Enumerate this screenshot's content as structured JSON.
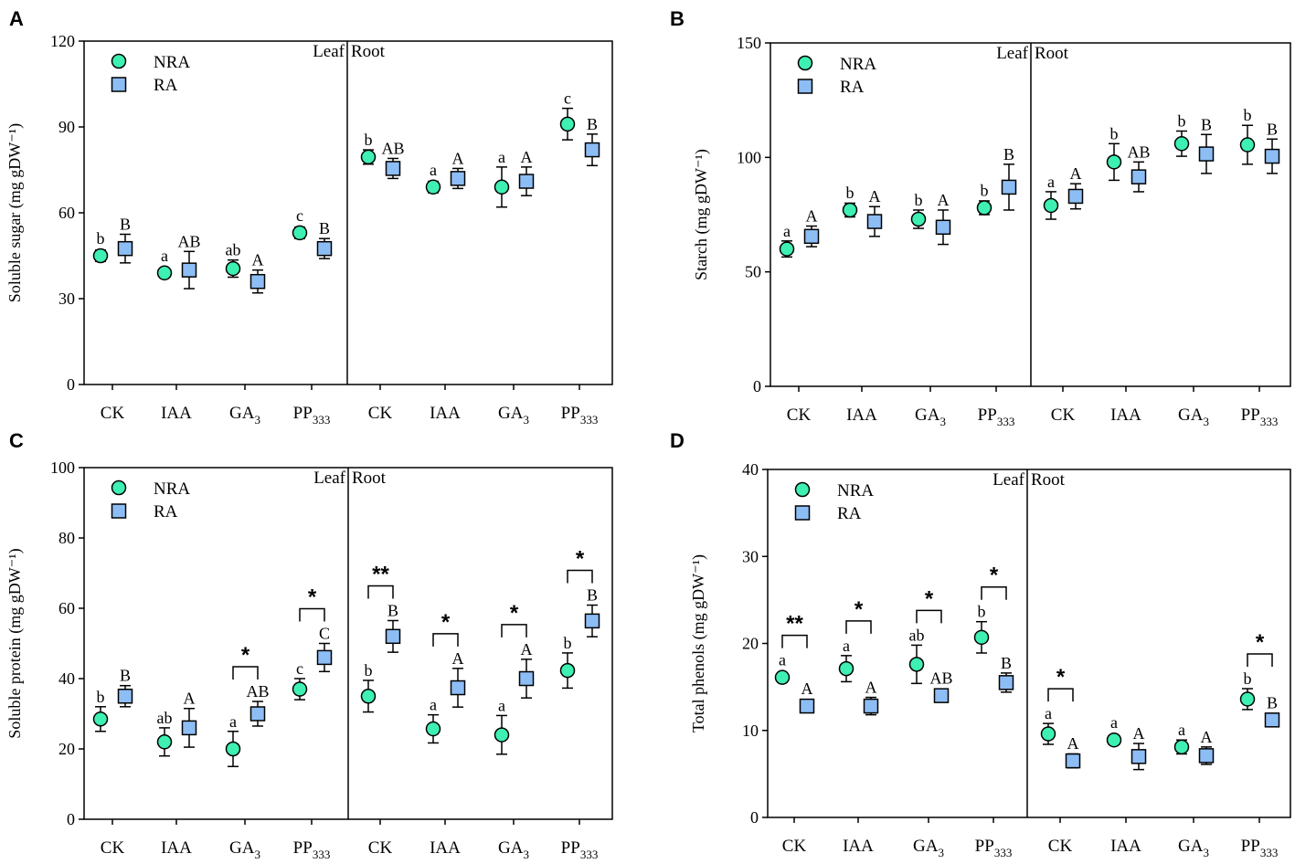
{
  "colors": {
    "nra": "#3ef0b2",
    "ra": "#8dbdf5",
    "axis": "#000000"
  },
  "chart_data": [
    {
      "panel": "A",
      "type": "scatter",
      "ylabel": "Soluble sugar (mg gDW⁻¹)",
      "ylim": [
        0,
        120
      ],
      "yticks": [
        0,
        30,
        60,
        90,
        120
      ],
      "categories": [
        "CK",
        "IAA",
        "GA3",
        "PP333",
        "CK",
        "IAA",
        "GA3",
        "PP333"
      ],
      "section_labels": [
        "Leaf",
        "Root"
      ],
      "legend": [
        "NRA",
        "RA"
      ],
      "legend_position": "top-left",
      "series": [
        {
          "name": "NRA",
          "values": [
            45,
            39,
            40.5,
            53,
            79.5,
            69,
            69,
            91
          ],
          "errors": [
            2,
            1,
            3,
            2,
            2.5,
            2,
            7,
            5.5
          ],
          "letters": [
            "b",
            "a",
            "ab",
            "c",
            "b",
            "a",
            "a",
            "c"
          ]
        },
        {
          "name": "RA",
          "values": [
            47.5,
            40,
            36,
            47.5,
            75.5,
            72,
            71,
            82
          ],
          "errors": [
            5,
            6.5,
            4,
            3.5,
            3.5,
            3.5,
            5,
            5.5
          ],
          "letters": [
            "B",
            "AB",
            "A",
            "B",
            "AB",
            "A",
            "A",
            "B"
          ]
        }
      ],
      "significance": []
    },
    {
      "panel": "B",
      "type": "scatter",
      "ylabel": "Starch (mg gDW⁻¹)",
      "ylim": [
        0,
        150
      ],
      "yticks": [
        0,
        50,
        100,
        150
      ],
      "categories": [
        "CK",
        "IAA",
        "GA3",
        "PP333",
        "CK",
        "IAA",
        "GA3",
        "PP333"
      ],
      "section_labels": [
        "Leaf",
        "Root"
      ],
      "legend": [
        "NRA",
        "RA"
      ],
      "legend_position": "top-left",
      "series": [
        {
          "name": "NRA",
          "values": [
            60,
            77,
            73,
            78,
            79,
            98,
            106,
            105.5
          ],
          "errors": [
            3.5,
            3,
            4,
            3,
            6,
            8,
            5.5,
            8.5
          ],
          "letters": [
            "a",
            "b",
            "b",
            "b",
            "a",
            "b",
            "b",
            "b"
          ]
        },
        {
          "name": "RA",
          "values": [
            65.5,
            72,
            69.5,
            87,
            83,
            91.5,
            101.5,
            100.5
          ],
          "errors": [
            4.5,
            6.5,
            7.5,
            10,
            5.5,
            6.5,
            8.5,
            7.5
          ],
          "letters": [
            "A",
            "A",
            "A",
            "B",
            "A",
            "AB",
            "B",
            "B"
          ]
        }
      ],
      "significance": []
    },
    {
      "panel": "C",
      "type": "scatter",
      "ylabel": "Soluble protein (mg gDW⁻¹)",
      "ylim": [
        0,
        100
      ],
      "yticks": [
        0,
        20,
        40,
        60,
        80,
        100
      ],
      "categories": [
        "CK",
        "IAA",
        "GA3",
        "PP333",
        "CK",
        "IAA",
        "GA3",
        "PP333"
      ],
      "section_labels": [
        "Leaf",
        "Root"
      ],
      "legend": [
        "NRA",
        "RA"
      ],
      "legend_position": "top-left",
      "series": [
        {
          "name": "NRA",
          "values": [
            28.5,
            22,
            20,
            37,
            35,
            25.7,
            24,
            42.3
          ],
          "errors": [
            3.5,
            4,
            5,
            3,
            4.5,
            4,
            5.5,
            5
          ],
          "letters": [
            "b",
            "ab",
            "a",
            "c",
            "b",
            "a",
            "a",
            "b"
          ]
        },
        {
          "name": "RA",
          "values": [
            35,
            26,
            30,
            46,
            52,
            37.4,
            40,
            56.4
          ],
          "errors": [
            3,
            5.5,
            3.5,
            4,
            4.5,
            5.5,
            5.5,
            4.5
          ],
          "letters": [
            "B",
            "A",
            "AB",
            "C",
            "B",
            "A",
            "A",
            "B"
          ]
        }
      ],
      "significance": [
        {
          "group": 2,
          "label": "*"
        },
        {
          "group": 3,
          "label": "*"
        },
        {
          "group": 4,
          "label": "**"
        },
        {
          "group": 5,
          "label": "*"
        },
        {
          "group": 6,
          "label": "*"
        },
        {
          "group": 7,
          "label": "*"
        }
      ]
    },
    {
      "panel": "D",
      "type": "scatter",
      "ylabel": "Total phenols (mg gDW⁻¹)",
      "ylim": [
        0,
        40
      ],
      "yticks": [
        0,
        10,
        20,
        30,
        40
      ],
      "categories": [
        "CK",
        "IAA",
        "GA3",
        "PP333",
        "CK",
        "IAA",
        "GA3",
        "PP333"
      ],
      "section_labels": [
        "Leaf",
        "Root"
      ],
      "legend": [
        "NRA",
        "RA"
      ],
      "legend_position": "top-left",
      "series": [
        {
          "name": "NRA",
          "values": [
            16.1,
            17.1,
            17.6,
            20.7,
            9.6,
            8.9,
            8.1,
            13.6
          ],
          "errors": [
            0.5,
            1.5,
            2.2,
            1.8,
            1.2,
            0.5,
            0.8,
            1.2
          ],
          "letters": [
            "a",
            "a",
            "ab",
            "b",
            "a",
            "a",
            "a",
            "b"
          ]
        },
        {
          "name": "RA",
          "values": [
            12.8,
            12.8,
            14,
            15.5,
            6.5,
            7,
            7.1,
            11.2
          ],
          "errors": [
            0.5,
            1,
            0.4,
            1.1,
            0.8,
            1.5,
            1,
            0.5
          ],
          "letters": [
            "A",
            "A",
            "AB",
            "B",
            "A",
            "A",
            "A",
            "B"
          ]
        }
      ],
      "significance": [
        {
          "group": 0,
          "label": "**"
        },
        {
          "group": 1,
          "label": "*"
        },
        {
          "group": 2,
          "label": "*"
        },
        {
          "group": 3,
          "label": "*"
        },
        {
          "group": 4,
          "label": "*"
        },
        {
          "group": 7,
          "label": "*"
        }
      ]
    }
  ]
}
